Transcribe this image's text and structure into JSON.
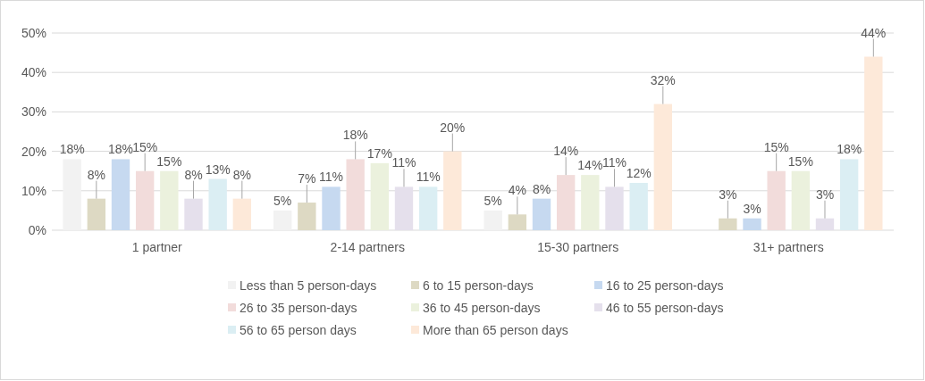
{
  "chart_data": {
    "type": "bar",
    "categories": [
      "1 partner",
      "2-14 partners",
      "15-30 partners",
      "31+ partners"
    ],
    "series": [
      {
        "name": "Less than 5 person-days",
        "color": "#f2f2f2",
        "values": [
          18,
          5,
          5,
          null
        ],
        "value_labels": [
          "18%",
          "5%",
          "5%",
          null
        ]
      },
      {
        "name": "6 to 15 person-days",
        "color": "#ddd9c3",
        "values": [
          8,
          7,
          4,
          3
        ],
        "value_labels": [
          "8%",
          "7%",
          "4%",
          "3%"
        ]
      },
      {
        "name": "16 to 25 person-days",
        "color": "#c6d9f0",
        "values": [
          18,
          11,
          8,
          3
        ],
        "value_labels": [
          "18%",
          "11%",
          "8%",
          "3%"
        ]
      },
      {
        "name": "26 to 35 person-days",
        "color": "#f2dcdb",
        "values": [
          15,
          18,
          14,
          15
        ],
        "value_labels": [
          "15%",
          "18%",
          "14%",
          "15%"
        ]
      },
      {
        "name": "36 to 45 person-days",
        "color": "#ebf1dd",
        "values": [
          15,
          17,
          14,
          15
        ],
        "value_labels": [
          "15%",
          "17%",
          "14%",
          "15%"
        ]
      },
      {
        "name": "46 to 55 person-days",
        "color": "#e5e0ec",
        "values": [
          8,
          11,
          11,
          3
        ],
        "value_labels": [
          "8%",
          "11%",
          "11%",
          "3%"
        ]
      },
      {
        "name": "56 to 65 person days",
        "color": "#dbeef3",
        "values": [
          13,
          11,
          12,
          18
        ],
        "value_labels": [
          "13%",
          "11%",
          "12%",
          "18%"
        ]
      },
      {
        "name": "More than 65 person days",
        "color": "#fde9d9",
        "values": [
          8,
          20,
          32,
          44
        ],
        "value_labels": [
          "8%",
          "20%",
          "32%",
          "44%"
        ]
      }
    ],
    "ylim": [
      0,
      50
    ],
    "yticks": [
      {
        "value": 0,
        "label": "0%"
      },
      {
        "value": 10,
        "label": "10%"
      },
      {
        "value": 20,
        "label": "20%"
      },
      {
        "value": 30,
        "label": "30%"
      },
      {
        "value": 40,
        "label": "40%"
      },
      {
        "value": 50,
        "label": "50%"
      }
    ],
    "grid": "y",
    "legend": "bottom"
  }
}
